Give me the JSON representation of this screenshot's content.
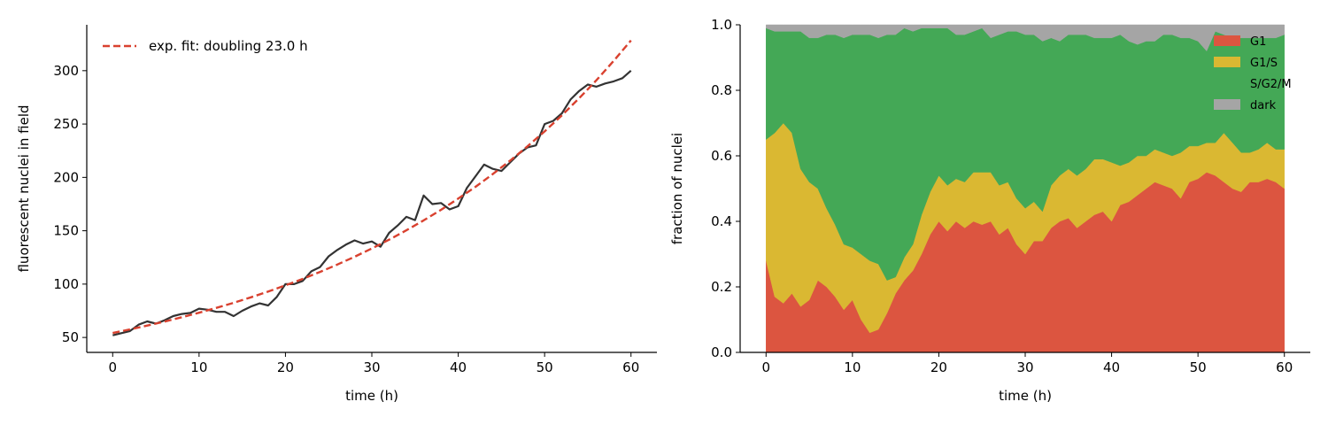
{
  "chart_data": [
    {
      "type": "line",
      "xlabel": "time (h)",
      "ylabel": "fluorescent nuclei in field",
      "xlim": [
        -3,
        63
      ],
      "ylim": [
        36,
        343
      ],
      "xticks": [
        0,
        10,
        20,
        30,
        40,
        50,
        60
      ],
      "yticks": [
        50,
        100,
        150,
        200,
        250,
        300
      ],
      "legend_position": "upper-left",
      "grid": false,
      "series": [
        {
          "kind": "observed",
          "color": "#333333",
          "style": "solid",
          "x": [
            0,
            1,
            2,
            3,
            4,
            5,
            6,
            7,
            8,
            9,
            10,
            11,
            12,
            13,
            14,
            15,
            16,
            17,
            18,
            19,
            20,
            21,
            22,
            23,
            24,
            25,
            26,
            27,
            28,
            29,
            30,
            31,
            32,
            33,
            34,
            35,
            36,
            37,
            38,
            39,
            40,
            41,
            42,
            43,
            44,
            45,
            46,
            47,
            48,
            49,
            50,
            51,
            52,
            53,
            54,
            55,
            56,
            57,
            58,
            59,
            60
          ],
          "y": [
            52,
            54,
            56,
            62,
            65,
            63,
            66,
            70,
            72,
            73,
            77,
            76,
            74,
            74,
            70,
            75,
            79,
            82,
            80,
            88,
            100,
            100,
            103,
            112,
            116,
            126,
            132,
            137,
            141,
            138,
            140,
            135,
            148,
            155,
            163,
            160,
            183,
            175,
            176,
            170,
            173,
            190,
            201,
            212,
            208,
            206,
            214,
            222,
            228,
            230,
            250,
            253,
            260,
            273,
            281,
            287,
            285,
            288,
            290,
            293,
            300
          ]
        },
        {
          "name": "exp. fit: doubling 23.0 h",
          "kind": "fit",
          "color": "#d9412f",
          "style": "dashed",
          "x": [
            0,
            2,
            4,
            6,
            8,
            10,
            12,
            14,
            16,
            18,
            20,
            22,
            24,
            26,
            28,
            30,
            32,
            34,
            36,
            38,
            40,
            42,
            44,
            46,
            48,
            50,
            52,
            54,
            56,
            58,
            60
          ],
          "y": [
            54.2,
            57.6,
            61.1,
            64.9,
            68.9,
            73.2,
            77.7,
            82.5,
            87.6,
            93.0,
            98.8,
            104.9,
            111.4,
            118.3,
            125.6,
            133.4,
            141.6,
            150.4,
            159.7,
            169.6,
            180.1,
            191.2,
            203.1,
            215.6,
            229.0,
            243.1,
            258.2,
            274.2,
            291.1,
            309.2,
            328.3
          ]
        }
      ]
    },
    {
      "type": "area",
      "stacked": true,
      "xlabel": "time (h)",
      "ylabel": "fraction of nuclei",
      "xlim": [
        -3,
        63
      ],
      "ylim": [
        0,
        1
      ],
      "xticks": [
        0,
        10,
        20,
        30,
        40,
        50,
        60
      ],
      "yticks": [
        0.0,
        0.2,
        0.4,
        0.6,
        0.8,
        1.0
      ],
      "ytick_labels": [
        "0.0",
        "0.2",
        "0.4",
        "0.6",
        "0.8",
        "1.0"
      ],
      "legend_position": "upper-right",
      "grid": false,
      "x": [
        0,
        1,
        2,
        3,
        4,
        5,
        6,
        7,
        8,
        9,
        10,
        11,
        12,
        13,
        14,
        15,
        16,
        17,
        18,
        19,
        20,
        21,
        22,
        23,
        24,
        25,
        26,
        27,
        28,
        29,
        30,
        31,
        32,
        33,
        34,
        35,
        36,
        37,
        38,
        39,
        40,
        41,
        42,
        43,
        44,
        45,
        46,
        47,
        48,
        49,
        50,
        51,
        52,
        53,
        54,
        55,
        56,
        57,
        58,
        59,
        60
      ],
      "series": [
        {
          "name": "G1",
          "color": "#dc5540",
          "values": [
            0.28,
            0.17,
            0.15,
            0.18,
            0.14,
            0.16,
            0.22,
            0.2,
            0.17,
            0.13,
            0.16,
            0.1,
            0.06,
            0.07,
            0.12,
            0.18,
            0.22,
            0.25,
            0.3,
            0.36,
            0.4,
            0.37,
            0.4,
            0.38,
            0.4,
            0.39,
            0.4,
            0.36,
            0.38,
            0.33,
            0.3,
            0.34,
            0.34,
            0.38,
            0.4,
            0.41,
            0.38,
            0.4,
            0.42,
            0.43,
            0.4,
            0.45,
            0.46,
            0.48,
            0.5,
            0.52,
            0.51,
            0.5,
            0.47,
            0.52,
            0.53,
            0.55,
            0.54,
            0.52,
            0.5,
            0.49,
            0.52,
            0.52,
            0.53,
            0.52,
            0.5
          ]
        },
        {
          "name": "G1/S",
          "color": "#dab832",
          "values": [
            0.37,
            0.5,
            0.55,
            0.49,
            0.42,
            0.36,
            0.28,
            0.24,
            0.22,
            0.2,
            0.16,
            0.2,
            0.22,
            0.2,
            0.1,
            0.05,
            0.07,
            0.08,
            0.12,
            0.13,
            0.14,
            0.14,
            0.13,
            0.14,
            0.15,
            0.16,
            0.15,
            0.15,
            0.14,
            0.14,
            0.14,
            0.12,
            0.09,
            0.13,
            0.14,
            0.15,
            0.16,
            0.16,
            0.17,
            0.16,
            0.18,
            0.12,
            0.12,
            0.12,
            0.1,
            0.1,
            0.1,
            0.1,
            0.14,
            0.11,
            0.1,
            0.09,
            0.1,
            0.15,
            0.14,
            0.12,
            0.09,
            0.1,
            0.11,
            0.1,
            0.12
          ]
        },
        {
          "name": "S/G2/M",
          "color": "#44a856",
          "values": [
            0.34,
            0.31,
            0.28,
            0.31,
            0.42,
            0.44,
            0.46,
            0.53,
            0.58,
            0.63,
            0.65,
            0.67,
            0.69,
            0.69,
            0.75,
            0.74,
            0.7,
            0.65,
            0.57,
            0.5,
            0.45,
            0.48,
            0.44,
            0.45,
            0.43,
            0.44,
            0.41,
            0.46,
            0.46,
            0.51,
            0.53,
            0.51,
            0.52,
            0.45,
            0.41,
            0.41,
            0.43,
            0.41,
            0.37,
            0.37,
            0.38,
            0.4,
            0.37,
            0.34,
            0.35,
            0.33,
            0.36,
            0.37,
            0.35,
            0.33,
            0.32,
            0.28,
            0.34,
            0.3,
            0.32,
            0.35,
            0.35,
            0.34,
            0.32,
            0.34,
            0.35
          ]
        },
        {
          "name": "dark",
          "color": "#a5a5a5",
          "values": [
            0.01,
            0.02,
            0.02,
            0.02,
            0.02,
            0.04,
            0.04,
            0.03,
            0.03,
            0.04,
            0.03,
            0.03,
            0.03,
            0.04,
            0.03,
            0.03,
            0.01,
            0.02,
            0.01,
            0.01,
            0.01,
            0.01,
            0.03,
            0.03,
            0.02,
            0.01,
            0.04,
            0.03,
            0.02,
            0.02,
            0.03,
            0.03,
            0.05,
            0.04,
            0.05,
            0.03,
            0.03,
            0.03,
            0.04,
            0.04,
            0.04,
            0.03,
            0.05,
            0.06,
            0.05,
            0.05,
            0.03,
            0.03,
            0.04,
            0.04,
            0.05,
            0.08,
            0.02,
            0.03,
            0.04,
            0.04,
            0.04,
            0.04,
            0.04,
            0.04,
            0.03
          ]
        }
      ]
    }
  ]
}
